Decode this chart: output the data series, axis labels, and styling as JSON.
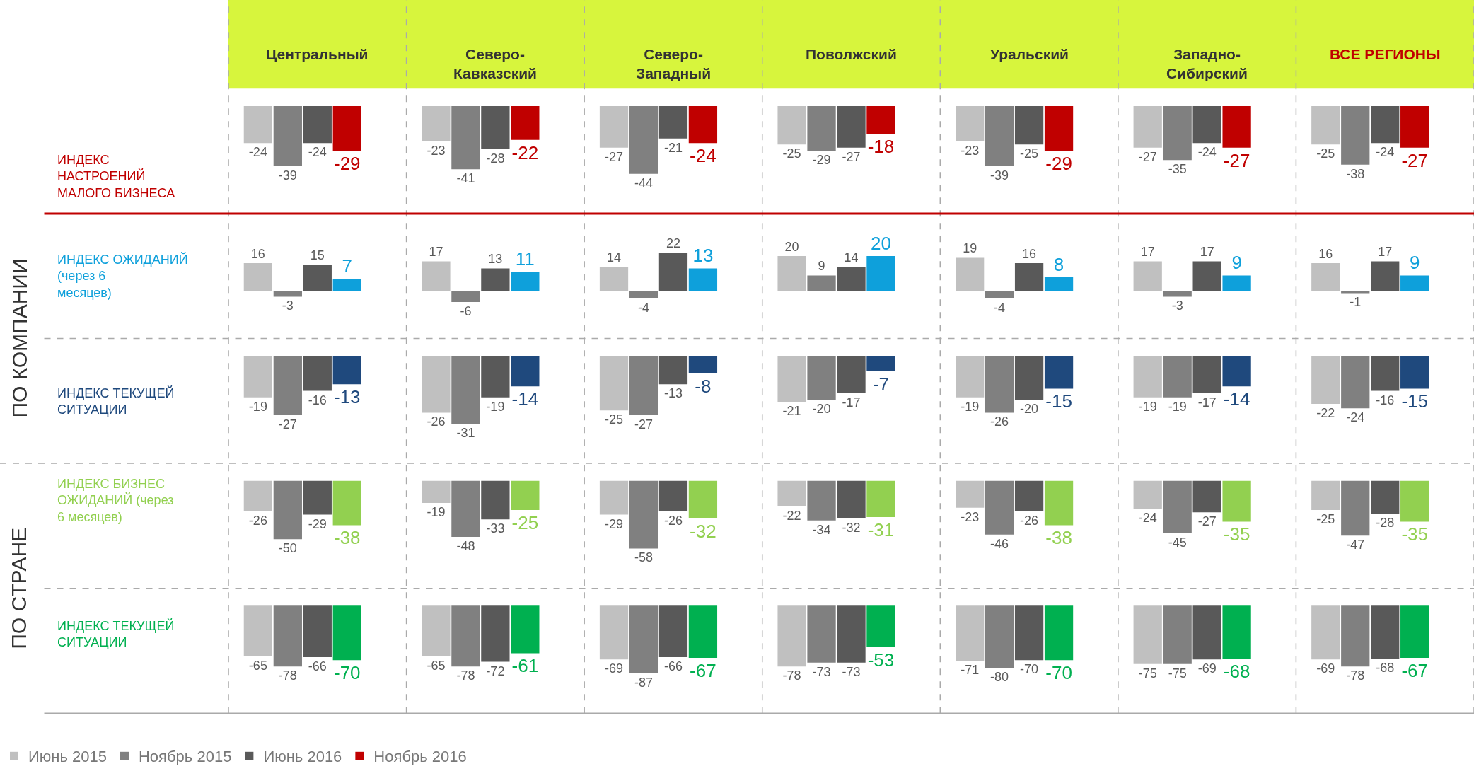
{
  "chart_data": [
    {
      "type": "bar",
      "title": "Центральный",
      "ylabel": "ИНДЕКС НАСТРОЕНИЙ МАЛОГО БИЗНЕСА",
      "categories": [
        null
      ],
      "data_labels": true,
      "legend": "bottom",
      "series": [
        {
          "name": "Июнь 2015",
          "color": "#c0c0c0",
          "values": [
            -24
          ]
        },
        {
          "name": "Ноябрь 2015",
          "color": "#808080",
          "values": [
            -39
          ]
        },
        {
          "name": "Июнь 2016",
          "color": "#595959",
          "values": [
            -24
          ]
        },
        {
          "name": "Ноябрь 2016",
          "color": "#c00000",
          "values": [
            -29
          ]
        }
      ]
    },
    {
      "type": "bar",
      "title": "Северо-Кавказский",
      "categories": [
        null
      ],
      "data_labels": true,
      "series": [
        {
          "color": "#c0c0c0",
          "values": [
            -23
          ]
        },
        {
          "color": "#808080",
          "values": [
            -41
          ]
        },
        {
          "color": "#595959",
          "values": [
            -28
          ]
        },
        {
          "color": "#c00000",
          "values": [
            -22
          ]
        }
      ]
    },
    {
      "type": "bar",
      "title": "Северо-Западный",
      "categories": [
        null
      ],
      "data_labels": true,
      "series": [
        {
          "color": "#c0c0c0",
          "values": [
            -27
          ]
        },
        {
          "color": "#808080",
          "values": [
            -44
          ]
        },
        {
          "color": "#595959",
          "values": [
            -21
          ]
        },
        {
          "color": "#c00000",
          "values": [
            -24
          ]
        }
      ]
    },
    {
      "type": "bar",
      "title": "Поволжский",
      "categories": [
        null
      ],
      "data_labels": true,
      "series": [
        {
          "color": "#c0c0c0",
          "values": [
            -25
          ]
        },
        {
          "color": "#808080",
          "values": [
            -29
          ]
        },
        {
          "color": "#595959",
          "values": [
            -27
          ]
        },
        {
          "color": "#c00000",
          "values": [
            -18
          ]
        }
      ]
    },
    {
      "type": "bar",
      "title": "Уральский",
      "categories": [
        null
      ],
      "data_labels": true,
      "series": [
        {
          "color": "#c0c0c0",
          "values": [
            -23
          ]
        },
        {
          "color": "#808080",
          "values": [
            -39
          ]
        },
        {
          "color": "#595959",
          "values": [
            -25
          ]
        },
        {
          "color": "#c00000",
          "values": [
            -29
          ]
        }
      ]
    },
    {
      "type": "bar",
      "title": "Западно-Сибирский",
      "categories": [
        null
      ],
      "data_labels": true,
      "series": [
        {
          "color": "#c0c0c0",
          "values": [
            -27
          ]
        },
        {
          "color": "#808080",
          "values": [
            -35
          ]
        },
        {
          "color": "#595959",
          "values": [
            -24
          ]
        },
        {
          "color": "#c00000",
          "values": [
            -27
          ]
        }
      ]
    },
    {
      "type": "bar",
      "title": "ВСЕ РЕГИОНЫ",
      "categories": [
        null
      ],
      "data_labels": true,
      "series": [
        {
          "color": "#c0c0c0",
          "values": [
            -25
          ]
        },
        {
          "color": "#808080",
          "values": [
            -38
          ]
        },
        {
          "color": "#595959",
          "values": [
            -24
          ]
        },
        {
          "color": "#c00000",
          "values": [
            -27
          ]
        }
      ]
    },
    {
      "type": "bar",
      "ylabel": "ИНДЕКС ОЖИДАНИЙ (через 6 месяцев)",
      "categories": [
        null
      ],
      "data_labels": true,
      "annotations": [
        "ПО КОМПАНИИ"
      ],
      "series": [
        {
          "color": "#c0c0c0",
          "values": [
            16
          ]
        },
        {
          "color": "#808080",
          "values": [
            -3
          ]
        },
        {
          "color": "#595959",
          "values": [
            15
          ]
        },
        {
          "color": "#0ea0db",
          "values": [
            7
          ]
        }
      ]
    },
    {
      "type": "bar",
      "categories": [
        null
      ],
      "data_labels": true,
      "series": [
        {
          "color": "#c0c0c0",
          "values": [
            17
          ]
        },
        {
          "color": "#808080",
          "values": [
            -6
          ]
        },
        {
          "color": "#595959",
          "values": [
            13
          ]
        },
        {
          "color": "#0ea0db",
          "values": [
            11
          ]
        }
      ]
    },
    {
      "type": "bar",
      "categories": [
        null
      ],
      "data_labels": true,
      "series": [
        {
          "color": "#c0c0c0",
          "values": [
            14
          ]
        },
        {
          "color": "#808080",
          "values": [
            -4
          ]
        },
        {
          "color": "#595959",
          "values": [
            22
          ]
        },
        {
          "color": "#0ea0db",
          "values": [
            13
          ]
        }
      ]
    },
    {
      "type": "bar",
      "categories": [
        null
      ],
      "data_labels": true,
      "series": [
        {
          "color": "#c0c0c0",
          "values": [
            20
          ]
        },
        {
          "color": "#808080",
          "values": [
            9
          ]
        },
        {
          "color": "#595959",
          "values": [
            14
          ]
        },
        {
          "color": "#0ea0db",
          "values": [
            20
          ]
        }
      ]
    },
    {
      "type": "bar",
      "categories": [
        null
      ],
      "data_labels": true,
      "series": [
        {
          "color": "#c0c0c0",
          "values": [
            19
          ]
        },
        {
          "color": "#808080",
          "values": [
            -4
          ]
        },
        {
          "color": "#595959",
          "values": [
            16
          ]
        },
        {
          "color": "#0ea0db",
          "values": [
            8
          ]
        }
      ]
    },
    {
      "type": "bar",
      "categories": [
        null
      ],
      "data_labels": true,
      "series": [
        {
          "color": "#c0c0c0",
          "values": [
            17
          ]
        },
        {
          "color": "#808080",
          "values": [
            -3
          ]
        },
        {
          "color": "#595959",
          "values": [
            17
          ]
        },
        {
          "color": "#0ea0db",
          "values": [
            9
          ]
        }
      ]
    },
    {
      "type": "bar",
      "categories": [
        null
      ],
      "data_labels": true,
      "series": [
        {
          "color": "#c0c0c0",
          "values": [
            16
          ]
        },
        {
          "color": "#808080",
          "values": [
            -1
          ]
        },
        {
          "color": "#595959",
          "values": [
            17
          ]
        },
        {
          "color": "#0ea0db",
          "values": [
            9
          ]
        }
      ]
    },
    {
      "type": "bar",
      "ylabel": "ИНДЕКС ТЕКУЩЕЙ СИТУАЦИИ",
      "categories": [
        null
      ],
      "data_labels": true,
      "series": [
        {
          "color": "#c0c0c0",
          "values": [
            -19
          ]
        },
        {
          "color": "#808080",
          "values": [
            -27
          ]
        },
        {
          "color": "#595959",
          "values": [
            -16
          ]
        },
        {
          "color": "#1f497d",
          "values": [
            -13
          ]
        }
      ]
    },
    {
      "type": "bar",
      "categories": [
        null
      ],
      "data_labels": true,
      "series": [
        {
          "color": "#c0c0c0",
          "values": [
            -26
          ]
        },
        {
          "color": "#808080",
          "values": [
            -31
          ]
        },
        {
          "color": "#595959",
          "values": [
            -19
          ]
        },
        {
          "color": "#1f497d",
          "values": [
            -14
          ]
        }
      ]
    },
    {
      "type": "bar",
      "categories": [
        null
      ],
      "data_labels": true,
      "series": [
        {
          "color": "#c0c0c0",
          "values": [
            -25
          ]
        },
        {
          "color": "#808080",
          "values": [
            -27
          ]
        },
        {
          "color": "#595959",
          "values": [
            -13
          ]
        },
        {
          "color": "#1f497d",
          "values": [
            -8
          ]
        }
      ]
    },
    {
      "type": "bar",
      "categories": [
        null
      ],
      "data_labels": true,
      "series": [
        {
          "color": "#c0c0c0",
          "values": [
            -21
          ]
        },
        {
          "color": "#808080",
          "values": [
            -20
          ]
        },
        {
          "color": "#595959",
          "values": [
            -17
          ]
        },
        {
          "color": "#1f497d",
          "values": [
            -7
          ]
        }
      ]
    },
    {
      "type": "bar",
      "categories": [
        null
      ],
      "data_labels": true,
      "series": [
        {
          "color": "#c0c0c0",
          "values": [
            -19
          ]
        },
        {
          "color": "#808080",
          "values": [
            -26
          ]
        },
        {
          "color": "#595959",
          "values": [
            -20
          ]
        },
        {
          "color": "#1f497d",
          "values": [
            -15
          ]
        }
      ]
    },
    {
      "type": "bar",
      "categories": [
        null
      ],
      "data_labels": true,
      "series": [
        {
          "color": "#c0c0c0",
          "values": [
            -19
          ]
        },
        {
          "color": "#808080",
          "values": [
            -19
          ]
        },
        {
          "color": "#595959",
          "values": [
            -17
          ]
        },
        {
          "color": "#1f497d",
          "values": [
            -14
          ]
        }
      ]
    },
    {
      "type": "bar",
      "categories": [
        null
      ],
      "data_labels": true,
      "series": [
        {
          "color": "#c0c0c0",
          "values": [
            -22
          ]
        },
        {
          "color": "#808080",
          "values": [
            -24
          ]
        },
        {
          "color": "#595959",
          "values": [
            -16
          ]
        },
        {
          "color": "#1f497d",
          "values": [
            -15
          ]
        }
      ]
    },
    {
      "type": "bar",
      "ylabel": "ИНДЕКС БИЗНЕС ОЖИДАНИЙ (через 6 месяцев)",
      "categories": [
        null
      ],
      "data_labels": true,
      "annotations": [
        "ПО СТРАНЕ"
      ],
      "series": [
        {
          "color": "#c0c0c0",
          "values": [
            -26
          ]
        },
        {
          "color": "#808080",
          "values": [
            -50
          ]
        },
        {
          "color": "#595959",
          "values": [
            -29
          ]
        },
        {
          "color": "#92d050",
          "values": [
            -38
          ]
        }
      ]
    },
    {
      "type": "bar",
      "categories": [
        null
      ],
      "data_labels": true,
      "series": [
        {
          "color": "#c0c0c0",
          "values": [
            -19
          ]
        },
        {
          "color": "#808080",
          "values": [
            -48
          ]
        },
        {
          "color": "#595959",
          "values": [
            -33
          ]
        },
        {
          "color": "#92d050",
          "values": [
            -25
          ]
        }
      ]
    },
    {
      "type": "bar",
      "categories": [
        null
      ],
      "data_labels": true,
      "series": [
        {
          "color": "#c0c0c0",
          "values": [
            -29
          ]
        },
        {
          "color": "#808080",
          "values": [
            -58
          ]
        },
        {
          "color": "#595959",
          "values": [
            -26
          ]
        },
        {
          "color": "#92d050",
          "values": [
            -32
          ]
        }
      ]
    },
    {
      "type": "bar",
      "categories": [
        null
      ],
      "data_labels": true,
      "series": [
        {
          "color": "#c0c0c0",
          "values": [
            -22
          ]
        },
        {
          "color": "#808080",
          "values": [
            -34
          ]
        },
        {
          "color": "#595959",
          "values": [
            -32
          ]
        },
        {
          "color": "#92d050",
          "values": [
            -31
          ]
        }
      ]
    },
    {
      "type": "bar",
      "categories": [
        null
      ],
      "data_labels": true,
      "series": [
        {
          "color": "#c0c0c0",
          "values": [
            -23
          ]
        },
        {
          "color": "#808080",
          "values": [
            -46
          ]
        },
        {
          "color": "#595959",
          "values": [
            -26
          ]
        },
        {
          "color": "#92d050",
          "values": [
            -38
          ]
        }
      ]
    },
    {
      "type": "bar",
      "categories": [
        null
      ],
      "data_labels": true,
      "series": [
        {
          "color": "#c0c0c0",
          "values": [
            -24
          ]
        },
        {
          "color": "#808080",
          "values": [
            -45
          ]
        },
        {
          "color": "#595959",
          "values": [
            -27
          ]
        },
        {
          "color": "#92d050",
          "values": [
            -35
          ]
        }
      ]
    },
    {
      "type": "bar",
      "categories": [
        null
      ],
      "data_labels": true,
      "series": [
        {
          "color": "#c0c0c0",
          "values": [
            -25
          ]
        },
        {
          "color": "#808080",
          "values": [
            -47
          ]
        },
        {
          "color": "#595959",
          "values": [
            -28
          ]
        },
        {
          "color": "#92d050",
          "values": [
            -35
          ]
        }
      ]
    },
    {
      "type": "bar",
      "ylabel": "ИНДЕКС ТЕКУЩЕЙ СИТУАЦИИ",
      "categories": [
        null
      ],
      "data_labels": true,
      "series": [
        {
          "color": "#c0c0c0",
          "values": [
            -65
          ]
        },
        {
          "color": "#808080",
          "values": [
            -78
          ]
        },
        {
          "color": "#595959",
          "values": [
            -66
          ]
        },
        {
          "color": "#00b050",
          "values": [
            -70
          ]
        }
      ]
    },
    {
      "type": "bar",
      "categories": [
        null
      ],
      "data_labels": true,
      "series": [
        {
          "color": "#c0c0c0",
          "values": [
            -65
          ]
        },
        {
          "color": "#808080",
          "values": [
            -78
          ]
        },
        {
          "color": "#595959",
          "values": [
            -72
          ]
        },
        {
          "color": "#00b050",
          "values": [
            -61
          ]
        }
      ]
    },
    {
      "type": "bar",
      "categories": [
        null
      ],
      "data_labels": true,
      "series": [
        {
          "color": "#c0c0c0",
          "values": [
            -69
          ]
        },
        {
          "color": "#808080",
          "values": [
            -87
          ]
        },
        {
          "color": "#595959",
          "values": [
            -66
          ]
        },
        {
          "color": "#00b050",
          "values": [
            -67
          ]
        }
      ]
    },
    {
      "type": "bar",
      "categories": [
        null
      ],
      "data_labels": true,
      "series": [
        {
          "color": "#c0c0c0",
          "values": [
            -78
          ]
        },
        {
          "color": "#808080",
          "values": [
            -73
          ]
        },
        {
          "color": "#595959",
          "values": [
            -73
          ]
        },
        {
          "color": "#00b050",
          "values": [
            -53
          ]
        }
      ]
    },
    {
      "type": "bar",
      "categories": [
        null
      ],
      "data_labels": true,
      "series": [
        {
          "color": "#c0c0c0",
          "values": [
            -71
          ]
        },
        {
          "color": "#808080",
          "values": [
            -80
          ]
        },
        {
          "color": "#595959",
          "values": [
            -70
          ]
        },
        {
          "color": "#00b050",
          "values": [
            -70
          ]
        }
      ]
    },
    {
      "type": "bar",
      "categories": [
        null
      ],
      "data_labels": true,
      "series": [
        {
          "color": "#c0c0c0",
          "values": [
            -75
          ]
        },
        {
          "color": "#808080",
          "values": [
            -75
          ]
        },
        {
          "color": "#595959",
          "values": [
            -69
          ]
        },
        {
          "color": "#00b050",
          "values": [
            -68
          ]
        }
      ]
    },
    {
      "type": "bar",
      "categories": [
        null
      ],
      "data_labels": true,
      "series": [
        {
          "color": "#c0c0c0",
          "values": [
            -69
          ]
        },
        {
          "color": "#808080",
          "values": [
            -78
          ]
        },
        {
          "color": "#595959",
          "values": [
            -68
          ]
        },
        {
          "color": "#00b050",
          "values": [
            -67
          ]
        }
      ]
    }
  ]
}
